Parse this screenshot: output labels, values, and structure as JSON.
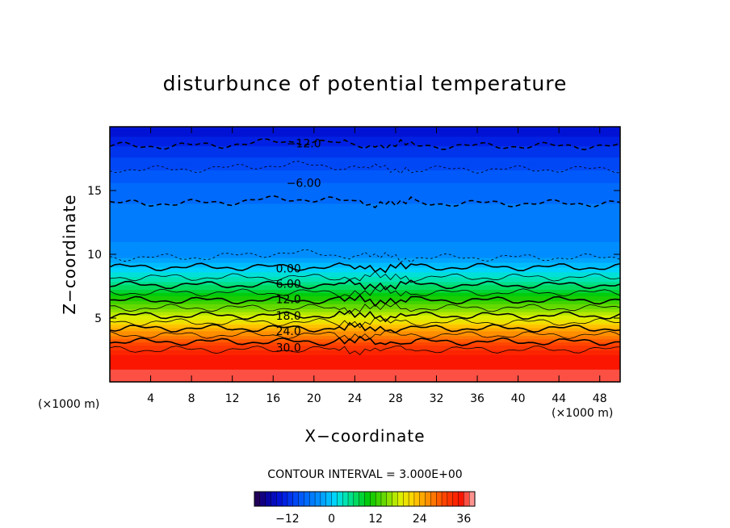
{
  "chart_data": {
    "type": "heatmap",
    "title": "disturbunce of potential temperature",
    "xlabel": "X−coordinate",
    "ylabel": "Z−coordinate",
    "x_unit": "(×1000 m)",
    "y_unit": "(×1000 m)",
    "xlim": [
      0,
      50
    ],
    "ylim": [
      0,
      20
    ],
    "x_ticks": [
      4,
      8,
      12,
      16,
      20,
      24,
      28,
      32,
      36,
      40,
      44,
      48
    ],
    "y_ticks": [
      5,
      10,
      15
    ],
    "contour_interval_text": "CONTOUR INTERVAL = 3.000E+00",
    "contour_interval": 3.0,
    "contour_labels": [
      {
        "text": "−12.0",
        "value": -12,
        "x": 19,
        "z": 18.7
      },
      {
        "text": "−6.00",
        "value": -6,
        "x": 19,
        "z": 15.6
      },
      {
        "text": "0.00",
        "value": 0,
        "x": 17.5,
        "z": 8.9
      },
      {
        "text": "6.00",
        "value": 6,
        "x": 17.5,
        "z": 7.7
      },
      {
        "text": "12.0",
        "value": 12,
        "x": 17.5,
        "z": 6.5
      },
      {
        "text": "18.0",
        "value": 18,
        "x": 17.5,
        "z": 5.2
      },
      {
        "text": "24.0",
        "value": 24,
        "x": 17.5,
        "z": 4.0
      },
      {
        "text": "30.0",
        "value": 30,
        "x": 17.5,
        "z": 2.7
      }
    ],
    "profile": {
      "z": [
        0,
        1,
        2,
        2.8,
        3.5,
        4.2,
        5.0,
        5.8,
        6.6,
        7.4,
        8.2,
        9.0,
        9.5,
        10,
        11,
        12,
        13,
        14,
        15,
        16,
        17,
        18,
        19,
        20
      ],
      "value": [
        36,
        36,
        35,
        32,
        28,
        24,
        19,
        15,
        11,
        7,
        3,
        0,
        -2,
        -4,
        -4.5,
        -5,
        -5.5,
        -6,
        -6.5,
        -8,
        -9.5,
        -11,
        -13,
        -15
      ]
    },
    "colorbar": {
      "range": [
        -21,
        39
      ],
      "ticks": [
        -12,
        0,
        12,
        24,
        36
      ],
      "tick_labels": [
        "−12",
        "0",
        "12",
        "24",
        "36"
      ]
    }
  }
}
